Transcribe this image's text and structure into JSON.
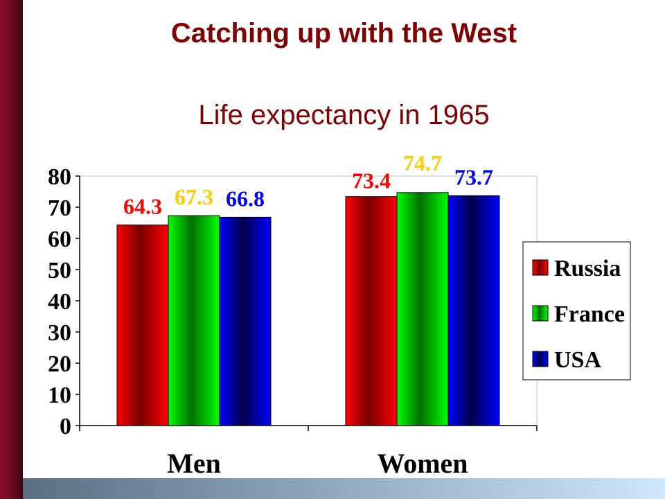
{
  "slide_title": "Catching up with the West",
  "chart_data": {
    "type": "bar",
    "title": "Life expectancy in 1965",
    "categories": [
      "Men",
      "Women"
    ],
    "series": [
      {
        "name": "Russia",
        "values": [
          64.3,
          73.4
        ],
        "label_color": "#ff0000"
      },
      {
        "name": "France",
        "values": [
          67.3,
          74.7
        ],
        "label_color": "#ffcc00"
      },
      {
        "name": "USA",
        "values": [
          66.8,
          73.7
        ],
        "label_color": "#0000ff"
      }
    ],
    "ylim": [
      0,
      80
    ],
    "yticks": [
      0,
      10,
      20,
      30,
      40,
      50,
      60,
      70,
      80
    ],
    "xlabel": "",
    "ylabel": "",
    "grid": false,
    "legend_position": "right",
    "colors": {
      "Russia": {
        "edge": "#ff0000",
        "center": "#7a0000"
      },
      "France": {
        "edge": "#00ff00",
        "center": "#007000"
      },
      "USA": {
        "edge": "#0000ff",
        "center": "#00004a"
      }
    },
    "slide_colors": {
      "title": "#800000",
      "accent_bar": "#8a0f2c"
    }
  }
}
